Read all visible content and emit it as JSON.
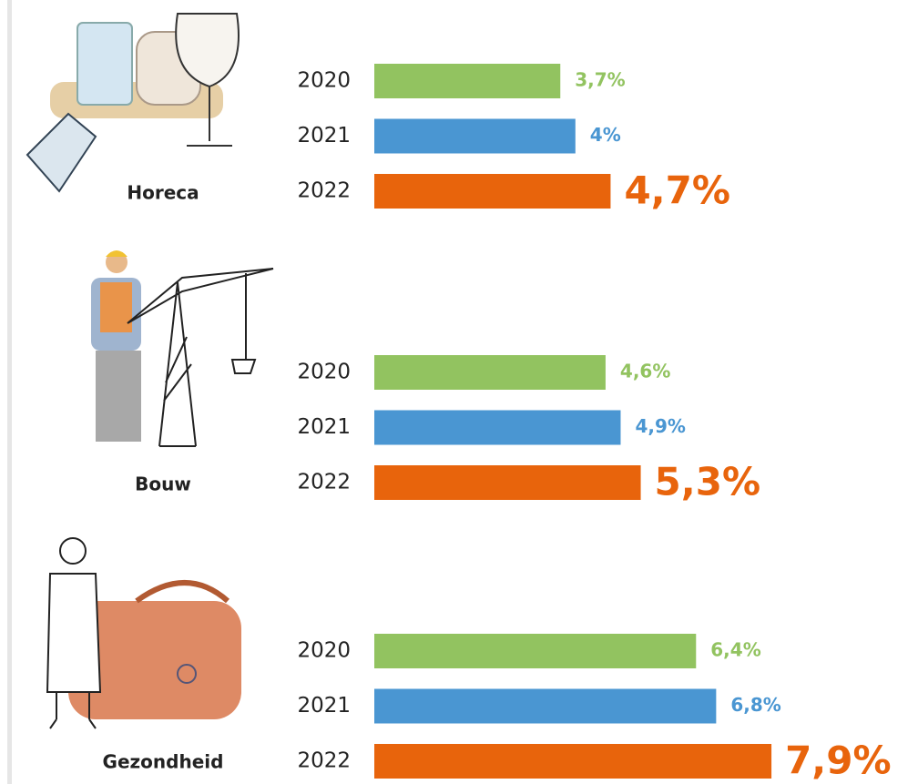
{
  "chart_data": [
    {
      "type": "bar",
      "title": "Horeca",
      "categories": [
        "2020",
        "2021",
        "2022"
      ],
      "values": [
        3.7,
        4,
        4.7
      ],
      "value_labels": [
        "3,7%",
        "4%",
        "4,7%"
      ],
      "colors": [
        "#92c360",
        "#4a96d2",
        "#e8640c"
      ]
    },
    {
      "type": "bar",
      "title": "Bouw",
      "categories": [
        "2020",
        "2021",
        "2022"
      ],
      "values": [
        4.6,
        4.9,
        5.3
      ],
      "value_labels": [
        "4,6%",
        "4,9%",
        "5,3%"
      ],
      "colors": [
        "#92c360",
        "#4a96d2",
        "#e8640c"
      ]
    },
    {
      "type": "bar",
      "title": "Gezondheid",
      "categories": [
        "2020",
        "2021",
        "2022"
      ],
      "values": [
        6.4,
        6.8,
        7.9
      ],
      "value_labels": [
        "6,4%",
        "6,8%",
        "7,9%"
      ],
      "colors": [
        "#92c360",
        "#4a96d2",
        "#e8640c"
      ]
    }
  ]
}
